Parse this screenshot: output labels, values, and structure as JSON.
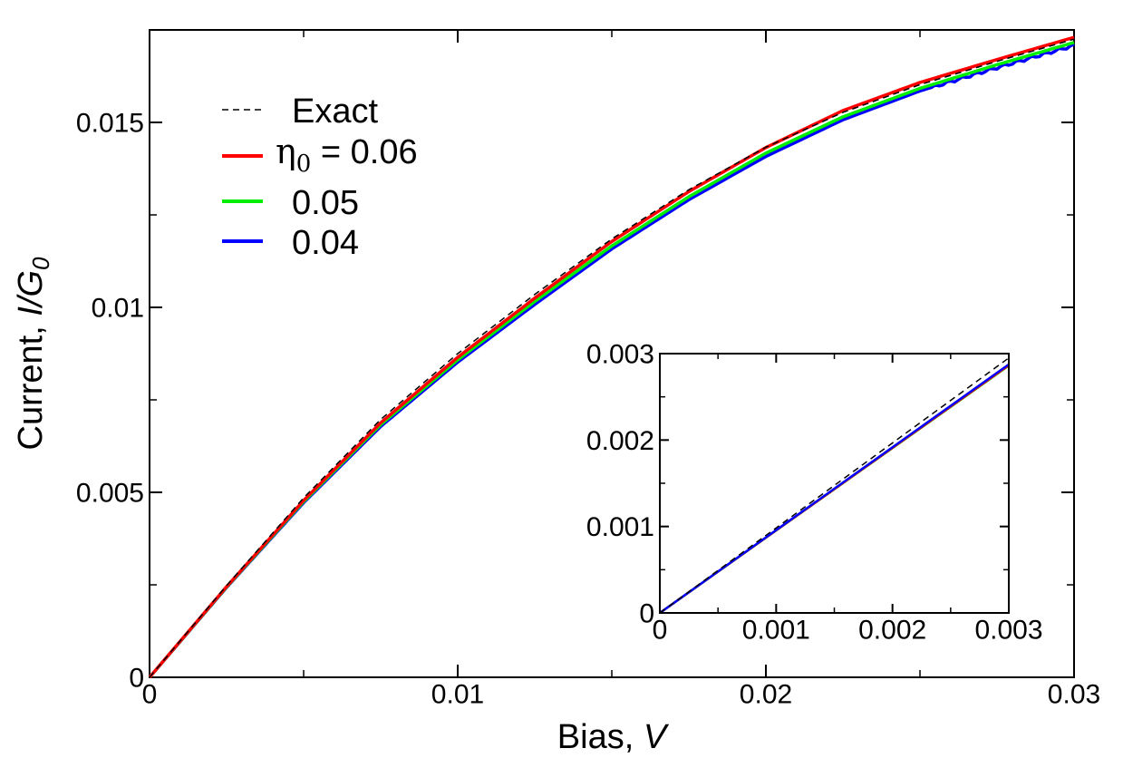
{
  "chart_data": {
    "type": "line",
    "xlabel": {
      "text": "Bias, ",
      "var": "V"
    },
    "ylabel": {
      "text": "Current, ",
      "var": "I/G",
      "sub": "0"
    },
    "xlim": [
      0,
      0.03
    ],
    "ylim": [
      0,
      0.0175
    ],
    "x_ticks": [
      {
        "value": 0,
        "label": "0"
      },
      {
        "value": 0.01,
        "label": "0.01"
      },
      {
        "value": 0.02,
        "label": "0.02"
      },
      {
        "value": 0.03,
        "label": "0.03"
      }
    ],
    "x_minor_ticks": [
      0.005,
      0.015,
      0.025
    ],
    "y_ticks": [
      {
        "value": 0,
        "label": "0"
      },
      {
        "value": 0.005,
        "label": "0.005"
      },
      {
        "value": 0.01,
        "label": "0.01"
      },
      {
        "value": 0.015,
        "label": "0.015"
      }
    ],
    "y_minor_ticks": [
      0.0025,
      0.0075,
      0.0125
    ],
    "legend": {
      "position": "top-left",
      "entries": [
        {
          "series": "exact",
          "label": "Exact"
        },
        {
          "series": "eta006",
          "prefix": "η",
          "sub": "0",
          "label": " = 0.06"
        },
        {
          "series": "eta005",
          "label": "0.05"
        },
        {
          "series": "eta004",
          "label": "0.04"
        }
      ]
    },
    "series": [
      {
        "id": "exact",
        "name": "Exact",
        "color": "#000000",
        "style": "dashed",
        "x": [
          0,
          0.0025,
          0.005,
          0.0075,
          0.01,
          0.0125,
          0.015,
          0.0175,
          0.02,
          0.0225,
          0.025,
          0.0275,
          0.03
        ],
        "y": [
          0,
          0.00248,
          0.00485,
          0.00697,
          0.00875,
          0.01035,
          0.01185,
          0.01318,
          0.01433,
          0.01527,
          0.01602,
          0.01665,
          0.01725
        ]
      },
      {
        "id": "eta006",
        "name": "η0 = 0.06",
        "color": "#ff0000",
        "style": "solid",
        "x": [
          0,
          0.0025,
          0.005,
          0.0075,
          0.01,
          0.0125,
          0.015,
          0.0175,
          0.02,
          0.0225,
          0.025,
          0.0275,
          0.03
        ],
        "y": [
          0,
          0.00245,
          0.00478,
          0.00688,
          0.00865,
          0.01025,
          0.01178,
          0.01313,
          0.01432,
          0.01532,
          0.01608,
          0.0167,
          0.0173
        ]
      },
      {
        "id": "eta005",
        "name": "0.05",
        "color": "#00ee00",
        "style": "solid",
        "x": [
          0,
          0.0025,
          0.005,
          0.0075,
          0.01,
          0.0125,
          0.015,
          0.0175,
          0.02,
          0.0225,
          0.025,
          0.0275,
          0.03
        ],
        "y": [
          0,
          0.00244,
          0.00475,
          0.00683,
          0.00858,
          0.01016,
          0.01166,
          0.01299,
          0.01417,
          0.01515,
          0.01592,
          0.01656,
          0.01716
        ]
      },
      {
        "id": "eta004",
        "name": "0.04",
        "color": "#0000ff",
        "style": "solid",
        "x": [
          0,
          0.0025,
          0.005,
          0.0075,
          0.01,
          0.0125,
          0.015,
          0.0175,
          0.02,
          0.0225,
          0.025,
          0.0275,
          0.03
        ],
        "y": [
          0,
          0.00243,
          0.00472,
          0.00678,
          0.00852,
          0.01008,
          0.01158,
          0.01291,
          0.01408,
          0.01507,
          0.01585,
          0.01648,
          0.01708
        ],
        "ripple": true
      }
    ],
    "inset": {
      "xlim": [
        0,
        0.003
      ],
      "ylim": [
        0,
        0.003
      ],
      "x_ticks": [
        {
          "value": 0,
          "label": "0"
        },
        {
          "value": 0.001,
          "label": "0.001"
        },
        {
          "value": 0.002,
          "label": "0.002"
        },
        {
          "value": 0.003,
          "label": "0.003"
        }
      ],
      "x_minor_ticks": [
        0.0005,
        0.0015,
        0.0025
      ],
      "y_ticks": [
        {
          "value": 0,
          "label": "0"
        },
        {
          "value": 0.001,
          "label": "0.001"
        },
        {
          "value": 0.002,
          "label": "0.002"
        },
        {
          "value": 0.003,
          "label": "0.003"
        }
      ],
      "y_minor_ticks": [
        0.0005,
        0.0015,
        0.0025
      ],
      "series": [
        {
          "id": "exact",
          "color": "#000000",
          "style": "dashed",
          "x": [
            0,
            0.003
          ],
          "y": [
            0,
            0.00295
          ]
        },
        {
          "id": "eta006",
          "color": "#ff0000",
          "style": "solid",
          "x": [
            0,
            0.003
          ],
          "y": [
            0,
            0.002865
          ]
        },
        {
          "id": "eta005",
          "color": "#00ee00",
          "style": "solid",
          "x": [
            0,
            0.003
          ],
          "y": [
            0,
            0.00286
          ]
        },
        {
          "id": "eta004",
          "color": "#0000ff",
          "style": "solid",
          "x": [
            0,
            0.003
          ],
          "y": [
            0,
            0.002875
          ]
        }
      ]
    }
  }
}
